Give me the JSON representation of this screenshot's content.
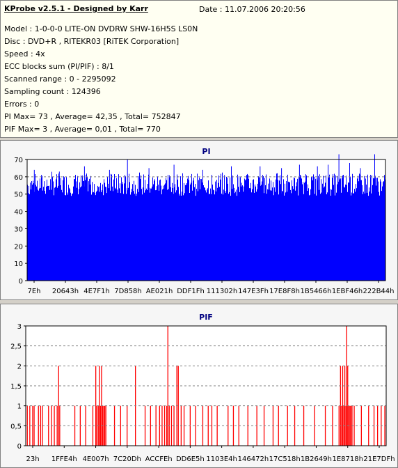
{
  "header": {
    "title": "KProbe v2.5.1 - Designed by Karr",
    "date": "Date : 11.07.2006 20:20:56"
  },
  "info_lines": [
    "Model : 1-0-0-0 LITE-ON DVDRW SHW-16H5S  LS0N",
    "Disc : DVD+R , RITEKR03 [RiTEK Corporation]",
    "Speed : 4x",
    "ECC blocks sum (PI/PIF) : 8/1",
    "Scanned range : 0 - 2295092",
    "Sampling count : 124396",
    "Errors : 0",
    "PI Max= 73 , Average= 42,35 , Total= 752847",
    "PIF Max= 3 , Average= 0,01 , Total= 770"
  ],
  "colors": {
    "pi": "#0000ff",
    "pif": "#ff0000",
    "title": "#000080",
    "grid": "#808080"
  },
  "chart_data": [
    {
      "type": "bar",
      "title": "PI",
      "ylim": [
        0,
        70
      ],
      "yticks": [
        0,
        10,
        20,
        30,
        40,
        50,
        60,
        70
      ],
      "xticks": [
        "7Eh",
        "20643h",
        "4E7F1h",
        "7D858h",
        "AE021h",
        "DDF1Fh",
        "111302h",
        "147E3Fh",
        "17E8F8h",
        "1B5466h",
        "1EBF46h",
        "222B44h"
      ],
      "dashed_lines": [
        60,
        70
      ],
      "baseline_level": 55,
      "noise_range": [
        49,
        62
      ],
      "spikes": [
        {
          "frac": 0.02,
          "value": 64
        },
        {
          "frac": 0.09,
          "value": 63
        },
        {
          "frac": 0.16,
          "value": 66
        },
        {
          "frac": 0.23,
          "value": 64
        },
        {
          "frac": 0.28,
          "value": 70
        },
        {
          "frac": 0.34,
          "value": 65
        },
        {
          "frac": 0.41,
          "value": 67
        },
        {
          "frac": 0.49,
          "value": 64
        },
        {
          "frac": 0.57,
          "value": 66
        },
        {
          "frac": 0.65,
          "value": 66
        },
        {
          "frac": 0.71,
          "value": 65
        },
        {
          "frac": 0.76,
          "value": 67
        },
        {
          "frac": 0.81,
          "value": 66
        },
        {
          "frac": 0.84,
          "value": 67
        },
        {
          "frac": 0.87,
          "value": 73
        },
        {
          "frac": 0.9,
          "value": 68
        },
        {
          "frac": 0.93,
          "value": 65
        },
        {
          "frac": 0.97,
          "value": 73
        }
      ]
    },
    {
      "type": "bar",
      "title": "PIF",
      "ylim": [
        0,
        3
      ],
      "yticks": [
        0,
        0.5,
        1,
        1.5,
        2,
        2.5,
        3
      ],
      "ytick_labels": [
        "0",
        "0,5",
        "1",
        "1,5",
        "2",
        "2,5",
        "3"
      ],
      "xticks": [
        "23h",
        "1FFE4h",
        "4E007h",
        "7C20Dh",
        "ACCFEh",
        "DD6E5h",
        "1103E4h",
        "146472h",
        "17C518h",
        "1B2649h",
        "1E8718h",
        "21E7DFh"
      ],
      "dashed_lines": [
        0.5,
        1,
        1.5,
        2,
        2.5
      ],
      "bars": [
        [
          0.003,
          1
        ],
        [
          0.01,
          1
        ],
        [
          0.018,
          1
        ],
        [
          0.022,
          1
        ],
        [
          0.034,
          1
        ],
        [
          0.04,
          1
        ],
        [
          0.045,
          1
        ],
        [
          0.062,
          1
        ],
        [
          0.07,
          1
        ],
        [
          0.078,
          1
        ],
        [
          0.086,
          1
        ],
        [
          0.09,
          2
        ],
        [
          0.093,
          1
        ],
        [
          0.135,
          1
        ],
        [
          0.15,
          1
        ],
        [
          0.165,
          1
        ],
        [
          0.185,
          1
        ],
        [
          0.193,
          2
        ],
        [
          0.196,
          1
        ],
        [
          0.2,
          1
        ],
        [
          0.203,
          2
        ],
        [
          0.206,
          1
        ],
        [
          0.209,
          2
        ],
        [
          0.212,
          1
        ],
        [
          0.215,
          1
        ],
        [
          0.218,
          1
        ],
        [
          0.221,
          1
        ],
        [
          0.245,
          1
        ],
        [
          0.262,
          1
        ],
        [
          0.28,
          1
        ],
        [
          0.303,
          2
        ],
        [
          0.33,
          1
        ],
        [
          0.345,
          1
        ],
        [
          0.36,
          1
        ],
        [
          0.37,
          1
        ],
        [
          0.377,
          1
        ],
        [
          0.384,
          1
        ],
        [
          0.39,
          1
        ],
        [
          0.393,
          3
        ],
        [
          0.397,
          1
        ],
        [
          0.403,
          1
        ],
        [
          0.41,
          1
        ],
        [
          0.418,
          2
        ],
        [
          0.422,
          2
        ],
        [
          0.43,
          1
        ],
        [
          0.438,
          1
        ],
        [
          0.455,
          1
        ],
        [
          0.47,
          1
        ],
        [
          0.49,
          1
        ],
        [
          0.505,
          1
        ],
        [
          0.515,
          1
        ],
        [
          0.53,
          1
        ],
        [
          0.56,
          1
        ],
        [
          0.575,
          1
        ],
        [
          0.59,
          1
        ],
        [
          0.615,
          1
        ],
        [
          0.64,
          1
        ],
        [
          0.66,
          1
        ],
        [
          0.685,
          1
        ],
        [
          0.7,
          1
        ],
        [
          0.725,
          1
        ],
        [
          0.745,
          1
        ],
        [
          0.77,
          1
        ],
        [
          0.8,
          1
        ],
        [
          0.83,
          1
        ],
        [
          0.85,
          1
        ],
        [
          0.868,
          1
        ],
        [
          0.872,
          2
        ],
        [
          0.875,
          1
        ],
        [
          0.878,
          2
        ],
        [
          0.881,
          1
        ],
        [
          0.884,
          2
        ],
        [
          0.887,
          1
        ],
        [
          0.889,
          3
        ],
        [
          0.892,
          2
        ],
        [
          0.895,
          1
        ],
        [
          0.898,
          1
        ],
        [
          0.901,
          1
        ],
        [
          0.904,
          1
        ],
        [
          0.91,
          1
        ],
        [
          0.93,
          1
        ],
        [
          0.95,
          1
        ],
        [
          0.965,
          1
        ],
        [
          0.975,
          1
        ],
        [
          0.985,
          1
        ],
        [
          0.995,
          1
        ]
      ]
    }
  ]
}
